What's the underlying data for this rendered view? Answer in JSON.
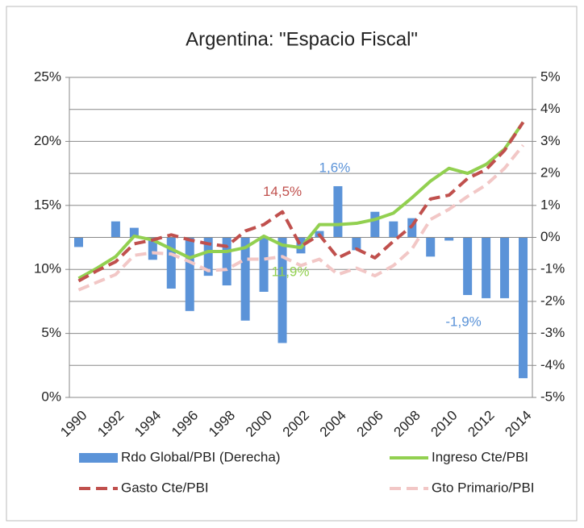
{
  "chart_data": {
    "type": "combo",
    "title": "Argentina: \"Espacio Fiscal\"",
    "categories": [
      "1990",
      null,
      "1992",
      null,
      "1994",
      null,
      "1996",
      null,
      "1998",
      null,
      "2000",
      null,
      "2002",
      null,
      "2004",
      null,
      "2006",
      null,
      "2008",
      null,
      "2010",
      null,
      "2012",
      null,
      "2014"
    ],
    "ylim": [
      0,
      25
    ],
    "yticks": [
      {
        "value": 0,
        "label": "0%"
      },
      {
        "value": 5,
        "label": "5%"
      },
      {
        "value": 10,
        "label": "10%"
      },
      {
        "value": 15,
        "label": "15%"
      },
      {
        "value": 20,
        "label": "20%"
      },
      {
        "value": 25,
        "label": "25%"
      }
    ],
    "y2lim": [
      -5,
      5
    ],
    "y2ticks": [
      {
        "value": -5,
        "label": "-5%"
      },
      {
        "value": -4,
        "label": "-4%"
      },
      {
        "value": -3,
        "label": "-3%"
      },
      {
        "value": -2,
        "label": "-2%"
      },
      {
        "value": -1,
        "label": "-1%"
      },
      {
        "value": 0,
        "label": "0%"
      },
      {
        "value": 1,
        "label": "1%"
      },
      {
        "value": 2,
        "label": "2%"
      },
      {
        "value": 3,
        "label": "3%"
      },
      {
        "value": 4,
        "label": "4%"
      },
      {
        "value": 5,
        "label": "5%"
      }
    ],
    "grid": "y2",
    "series": [
      {
        "name": "Rdo Global/PBI (Derecha)",
        "type": "bar",
        "axis": "y2",
        "color": "#5b93d8",
        "values": [
          -0.3,
          0,
          0.5,
          0.3,
          -0.7,
          -1.6,
          -2.3,
          -1.2,
          -1.5,
          -2.6,
          -1.7,
          -3.3,
          -0.5,
          0.2,
          1.6,
          -0.4,
          0.8,
          0.5,
          0.6,
          -0.6,
          -0.1,
          -1.8,
          -1.9,
          -1.9,
          -4.4
        ],
        "value_labels": [
          null,
          null,
          null,
          null,
          null,
          null,
          null,
          null,
          null,
          null,
          null,
          null,
          null,
          null,
          "1,6%",
          null,
          null,
          null,
          null,
          null,
          null,
          null,
          "-1,9%",
          null,
          null
        ]
      },
      {
        "name": "Ingreso Cte/PBI",
        "type": "line",
        "color": "#92d050",
        "dashed": false,
        "values": [
          9.3,
          10.1,
          11.0,
          12.6,
          12.3,
          11.6,
          10.9,
          11.4,
          11.4,
          11.7,
          12.6,
          11.9,
          11.7,
          13.5,
          13.5,
          13.6,
          13.9,
          14.4,
          15.6,
          16.9,
          17.9,
          17.5,
          18.2,
          19.4,
          21.5
        ],
        "value_labels": [
          null,
          null,
          null,
          null,
          null,
          null,
          null,
          null,
          null,
          null,
          null,
          "11,9%",
          null,
          null,
          null,
          null,
          null,
          null,
          null,
          null,
          null,
          null,
          null,
          null,
          null
        ]
      },
      {
        "name": "Gasto Cte/PBI",
        "type": "line",
        "color": "#c0504d",
        "dashed": true,
        "values": [
          9.1,
          9.9,
          10.6,
          12.0,
          12.3,
          12.7,
          12.3,
          12.0,
          11.8,
          13.0,
          13.5,
          14.5,
          11.8,
          12.7,
          10.9,
          11.6,
          10.9,
          12.2,
          13.4,
          15.5,
          15.8,
          17.1,
          17.8,
          19.3,
          21.5
        ],
        "value_labels": [
          null,
          null,
          null,
          null,
          null,
          null,
          null,
          null,
          null,
          null,
          null,
          "14,5%",
          null,
          null,
          null,
          null,
          null,
          null,
          null,
          null,
          null,
          null,
          null,
          null,
          null
        ]
      },
      {
        "name": "Gto Primario/PBI",
        "type": "line",
        "color": "#f2c7c6",
        "dashed": true,
        "values": [
          8.4,
          9.0,
          9.6,
          11.1,
          11.3,
          11.2,
          10.6,
          9.9,
          10.0,
          10.8,
          10.8,
          11.0,
          10.3,
          10.8,
          9.6,
          10.1,
          9.5,
          10.3,
          11.6,
          13.9,
          14.7,
          15.7,
          16.6,
          17.9,
          19.7
        ]
      }
    ]
  }
}
